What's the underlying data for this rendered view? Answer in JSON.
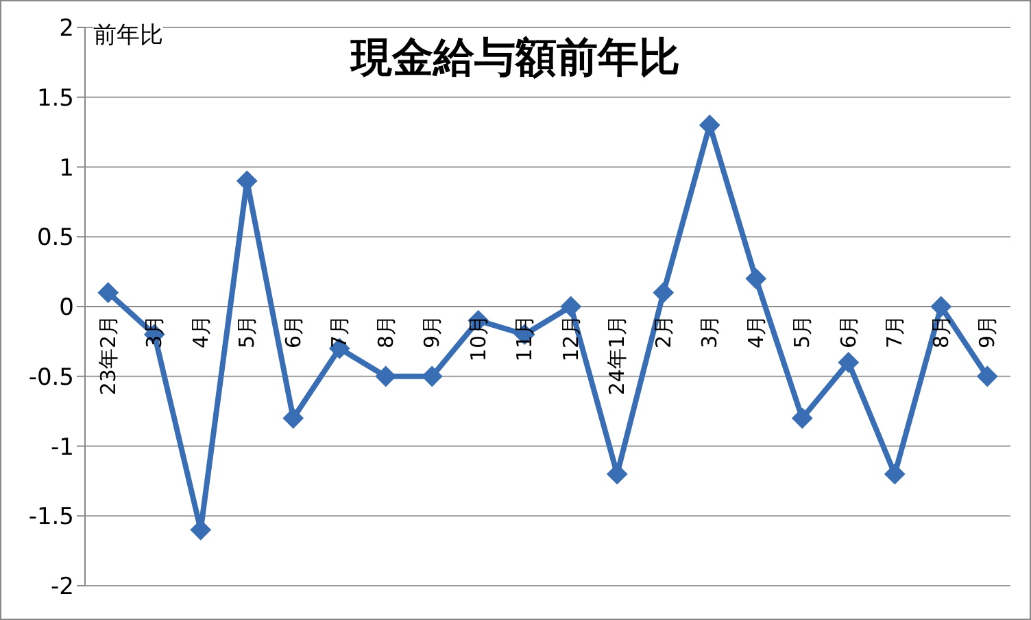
{
  "chart_data": {
    "type": "line",
    "title": "現金給与額前年比",
    "ylabel": "前年比",
    "categories": [
      "23年2月",
      "3月",
      "4月",
      "5月",
      "6月",
      "7月",
      "8月",
      "9月",
      "10月",
      "11月",
      "12月",
      "24年1月",
      "2月",
      "3月",
      "4月",
      "5月",
      "6月",
      "7月",
      "8月",
      "9月"
    ],
    "series": [
      {
        "color": "#3a6eb4",
        "values": [
          0.1,
          -0.2,
          -1.6,
          0.9,
          -0.8,
          -0.3,
          -0.5,
          -0.5,
          -0.1,
          -0.2,
          0,
          -1.2,
          0.1,
          1.3,
          0.2,
          -0.8,
          -0.4,
          -1.2,
          0,
          -0.5
        ]
      }
    ],
    "ylim": [
      -2,
      2
    ],
    "yticks": [
      -2,
      -1.5,
      -1,
      -0.5,
      0,
      0.5,
      1,
      1.5,
      2
    ],
    "grid": "y",
    "marker": "diamond",
    "line_style": "solid",
    "legend": false
  }
}
